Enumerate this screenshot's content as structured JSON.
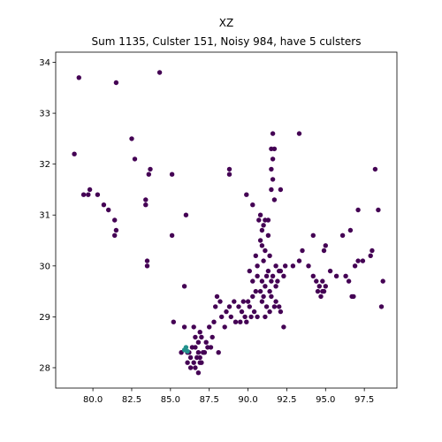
{
  "chart_data": {
    "type": "scatter",
    "title": "XZ",
    "subtitle": "Sum 1135, Culster 151, Noisy 984, have 5 culsters",
    "xlabel": "",
    "ylabel": "",
    "xlim": [
      77.6,
      99.6
    ],
    "ylim": [
      27.6,
      34.2
    ],
    "xticks": [
      80.0,
      82.5,
      85.0,
      87.5,
      90.0,
      92.5,
      95.0,
      97.5
    ],
    "xtick_labels": [
      "80.0",
      "82.5",
      "85.0",
      "87.5",
      "90.0",
      "92.5",
      "95.0",
      "97.5"
    ],
    "yticks": [
      28,
      29,
      30,
      31,
      32,
      33,
      34
    ],
    "ytick_labels": [
      "28",
      "29",
      "30",
      "31",
      "32",
      "33",
      "34"
    ],
    "grid": false,
    "colors": {
      "noise": "#440154",
      "cluster": "#21918c"
    },
    "series": [
      {
        "color": "#440154",
        "points": [
          [
            79.1,
            33.7
          ],
          [
            78.8,
            32.2
          ],
          [
            81.5,
            33.6
          ],
          [
            84.3,
            33.8
          ],
          [
            82.5,
            32.5
          ],
          [
            82.7,
            32.1
          ],
          [
            83.7,
            31.9
          ],
          [
            83.6,
            31.8
          ],
          [
            85.1,
            31.8
          ],
          [
            88.8,
            31.9
          ],
          [
            88.8,
            31.8
          ],
          [
            91.6,
            32.6
          ],
          [
            93.3,
            32.6
          ],
          [
            98.2,
            31.9
          ],
          [
            91.5,
            32.3
          ],
          [
            91.7,
            32.3
          ],
          [
            91.6,
            32.1
          ],
          [
            91.5,
            31.9
          ],
          [
            91.6,
            31.7
          ],
          [
            91.5,
            31.5
          ],
          [
            91.7,
            31.3
          ],
          [
            92.1,
            31.5
          ],
          [
            79.4,
            31.4
          ],
          [
            79.8,
            31.5
          ],
          [
            79.7,
            31.4
          ],
          [
            80.3,
            31.4
          ],
          [
            80.7,
            31.2
          ],
          [
            81.0,
            31.1
          ],
          [
            81.4,
            30.9
          ],
          [
            81.5,
            30.7
          ],
          [
            81.4,
            30.6
          ],
          [
            83.4,
            31.3
          ],
          [
            83.4,
            31.2
          ],
          [
            83.5,
            30.1
          ],
          [
            83.5,
            30.0
          ],
          [
            85.1,
            30.6
          ],
          [
            86.0,
            31.0
          ],
          [
            89.9,
            31.4
          ],
          [
            90.3,
            31.2
          ],
          [
            90.8,
            31.0
          ],
          [
            91.1,
            30.9
          ],
          [
            91.0,
            30.8
          ],
          [
            90.7,
            30.9
          ],
          [
            90.9,
            30.7
          ],
          [
            91.3,
            30.6
          ],
          [
            90.8,
            30.5
          ],
          [
            90.9,
            30.4
          ],
          [
            91.1,
            30.3
          ],
          [
            91.4,
            30.2
          ],
          [
            91.0,
            30.1
          ],
          [
            90.6,
            30.0
          ],
          [
            90.5,
            30.2
          ],
          [
            91.3,
            30.9
          ],
          [
            91.8,
            30.0
          ],
          [
            92.0,
            29.9
          ],
          [
            92.4,
            30.0
          ],
          [
            92.9,
            30.0
          ],
          [
            93.5,
            30.3
          ],
          [
            93.3,
            30.1
          ],
          [
            93.9,
            30.0
          ],
          [
            94.2,
            30.6
          ],
          [
            94.9,
            30.3
          ],
          [
            95.0,
            30.4
          ],
          [
            96.1,
            30.6
          ],
          [
            96.6,
            30.7
          ],
          [
            97.1,
            31.1
          ],
          [
            98.4,
            31.1
          ],
          [
            98.0,
            30.3
          ],
          [
            97.9,
            30.2
          ],
          [
            97.4,
            30.1
          ],
          [
            97.1,
            30.1
          ],
          [
            96.9,
            30.0
          ],
          [
            95.3,
            29.9
          ],
          [
            95.7,
            29.8
          ],
          [
            96.3,
            29.8
          ],
          [
            96.5,
            29.7
          ],
          [
            98.7,
            29.7
          ],
          [
            98.6,
            29.2
          ],
          [
            96.8,
            29.4
          ],
          [
            96.7,
            29.4
          ],
          [
            94.2,
            29.8
          ],
          [
            94.4,
            29.7
          ],
          [
            94.6,
            29.6
          ],
          [
            94.8,
            29.5
          ],
          [
            95.0,
            29.6
          ],
          [
            94.7,
            29.4
          ],
          [
            94.9,
            29.5
          ],
          [
            94.5,
            29.5
          ],
          [
            94.8,
            29.7
          ],
          [
            90.1,
            29.9
          ],
          [
            90.3,
            29.7
          ],
          [
            90.6,
            29.8
          ],
          [
            90.9,
            29.7
          ],
          [
            91.2,
            29.8
          ],
          [
            91.5,
            29.7
          ],
          [
            91.8,
            29.6
          ],
          [
            91.1,
            29.6
          ],
          [
            90.8,
            29.5
          ],
          [
            91.4,
            29.5
          ],
          [
            91.6,
            29.8
          ],
          [
            91.9,
            29.7
          ],
          [
            92.3,
            29.8
          ],
          [
            92.1,
            29.9
          ],
          [
            91.3,
            29.9
          ],
          [
            90.5,
            29.5
          ],
          [
            90.3,
            29.4
          ],
          [
            90.0,
            29.3
          ],
          [
            89.7,
            29.3
          ],
          [
            89.4,
            29.2
          ],
          [
            89.1,
            29.3
          ],
          [
            88.8,
            29.2
          ],
          [
            88.6,
            29.1
          ],
          [
            88.3,
            29.0
          ],
          [
            88.2,
            29.3
          ],
          [
            88.0,
            29.4
          ],
          [
            87.9,
            29.2
          ],
          [
            87.8,
            28.9
          ],
          [
            89.6,
            29.1
          ],
          [
            89.8,
            29.0
          ],
          [
            90.1,
            29.2
          ],
          [
            90.4,
            29.1
          ],
          [
            90.6,
            29.0
          ],
          [
            90.9,
            29.3
          ],
          [
            91.2,
            29.2
          ],
          [
            91.5,
            29.4
          ],
          [
            91.7,
            29.2
          ],
          [
            91.4,
            29.1
          ],
          [
            91.1,
            29.0
          ],
          [
            91.8,
            29.3
          ],
          [
            92.0,
            29.2
          ],
          [
            92.1,
            29.1
          ],
          [
            92.3,
            28.8
          ],
          [
            91.0,
            29.4
          ],
          [
            90.2,
            29.0
          ],
          [
            89.5,
            28.9
          ],
          [
            89.2,
            28.9
          ],
          [
            89.9,
            28.9
          ],
          [
            88.9,
            29.0
          ],
          [
            88.5,
            28.8
          ],
          [
            85.9,
            29.6
          ],
          [
            85.2,
            28.9
          ],
          [
            85.9,
            28.8
          ],
          [
            86.5,
            28.8
          ],
          [
            86.9,
            28.7
          ],
          [
            87.0,
            28.6
          ],
          [
            87.3,
            28.5
          ],
          [
            87.6,
            28.4
          ],
          [
            87.2,
            28.3
          ],
          [
            86.8,
            28.5
          ],
          [
            86.6,
            28.6
          ],
          [
            86.4,
            28.4
          ],
          [
            86.1,
            28.3
          ],
          [
            85.7,
            28.3
          ],
          [
            86.3,
            28.2
          ],
          [
            86.7,
            28.2
          ],
          [
            86.9,
            28.1
          ],
          [
            86.6,
            28.0
          ],
          [
            86.3,
            28.0
          ],
          [
            86.1,
            28.1
          ],
          [
            86.8,
            27.9
          ],
          [
            87.1,
            28.3
          ],
          [
            87.4,
            28.4
          ],
          [
            87.7,
            28.6
          ],
          [
            87.5,
            28.8
          ],
          [
            86.8,
            28.3
          ],
          [
            86.5,
            28.1
          ],
          [
            86.9,
            28.2
          ],
          [
            87.0,
            28.1
          ],
          [
            88.1,
            28.3
          ],
          [
            86.2,
            28.3
          ],
          [
            86.6,
            28.4
          ]
        ]
      },
      {
        "color": "#21918c",
        "points": [
          [
            86.0,
            28.4
          ],
          [
            85.9,
            28.35
          ],
          [
            86.1,
            28.32
          ]
        ]
      }
    ]
  }
}
